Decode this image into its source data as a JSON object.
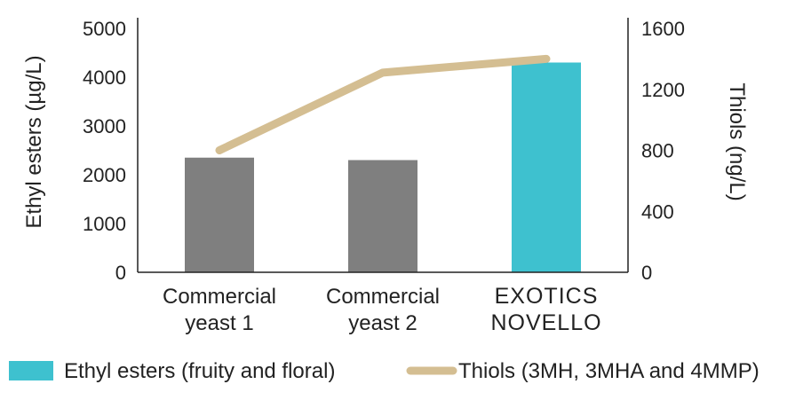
{
  "chart_data": {
    "type": "bar",
    "categories": [
      [
        "Commercial",
        "yeast 1"
      ],
      [
        "Commercial",
        "yeast 2"
      ],
      [
        "EXOTICS",
        "NOVELLO"
      ]
    ],
    "highlight_index": 2,
    "series": [
      {
        "name": "Ethyl esters (fruity and floral)",
        "type": "bar",
        "axis": "left",
        "values": [
          2350,
          2300,
          4300
        ],
        "colors": [
          "#7f7f7f",
          "#7f7f7f",
          "#3ec1cf"
        ]
      },
      {
        "name": "Thiols (3MH, 3MHA and 4MMP)",
        "type": "line",
        "axis": "right",
        "values": [
          800,
          1310,
          1400
        ],
        "color": "#d4be92"
      }
    ],
    "ylabel": "Ethyl esters (µg/L)",
    "ylabel_right": "Thiols (ng/L)",
    "ylim": [
      0,
      5000
    ],
    "ylim_right": [
      0,
      1600
    ],
    "yticks": [
      "0",
      "1000",
      "2000",
      "3000",
      "4000",
      "5000"
    ],
    "yticks_right": [
      "0",
      "400",
      "800",
      "1200",
      "1600"
    ],
    "legend_position": "bottom",
    "legend_color": "#3ec1cf",
    "highlight_label_color": "#3ec1cf",
    "grid": false
  }
}
